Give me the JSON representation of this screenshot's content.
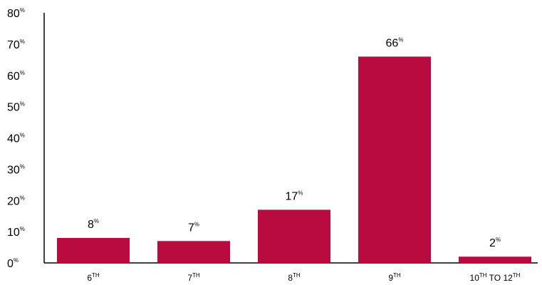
{
  "chart_data": {
    "type": "bar",
    "categories": [
      {
        "base": "6",
        "sup": "TH",
        "label": "6TH"
      },
      {
        "base": "7",
        "sup": "TH",
        "label": "7TH"
      },
      {
        "base": "8",
        "sup": "TH",
        "label": "8TH"
      },
      {
        "base": "9",
        "sup": "TH",
        "label": "9TH"
      },
      {
        "base": "10",
        "sup": "TH",
        "mid": " TO 12",
        "sup2": "TH",
        "label": "10TH TO 12TH"
      }
    ],
    "values": [
      8,
      7,
      17,
      66,
      2
    ],
    "value_suffix": "%",
    "yticks": [
      0,
      10,
      20,
      30,
      40,
      50,
      60,
      70,
      80
    ],
    "ytick_suffix": "%",
    "ylim": [
      0,
      80
    ],
    "bar_color": "#b90b3f",
    "grid": false,
    "title": "",
    "xlabel": "",
    "ylabel": ""
  }
}
